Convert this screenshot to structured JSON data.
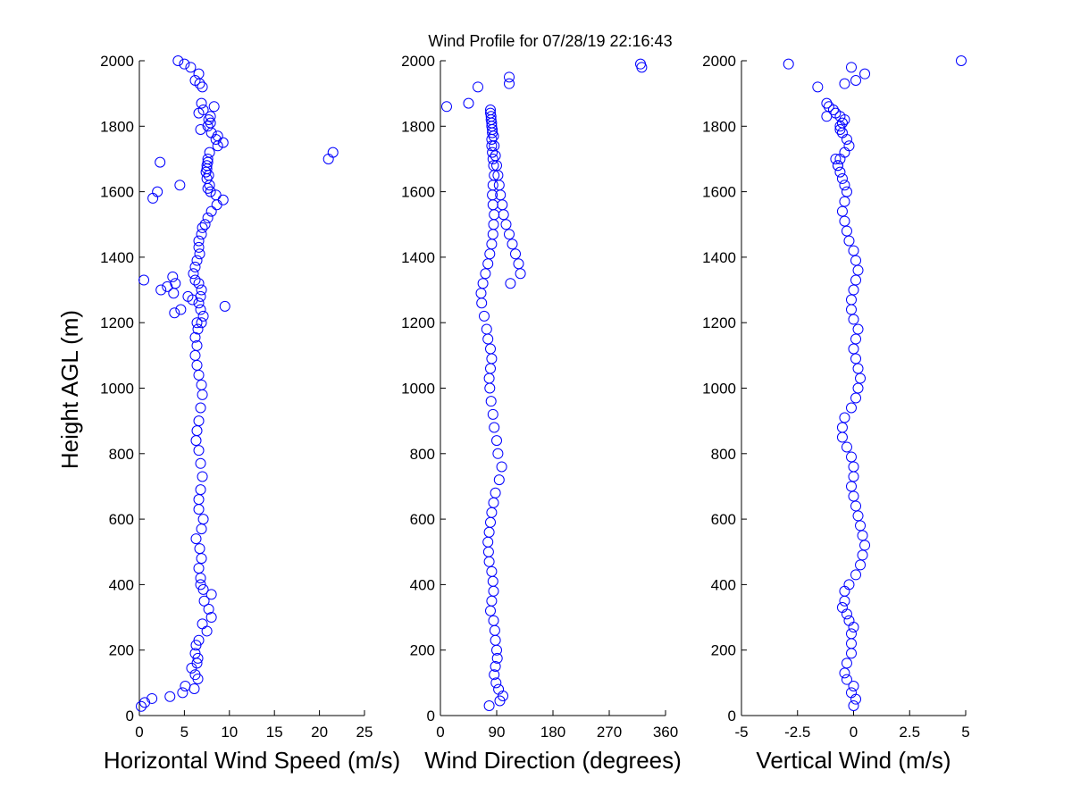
{
  "figure": {
    "title": "Wind Profile for  07/28/19 22:16:43",
    "ylabel": "Height AGL (m)"
  },
  "style": {
    "marker_color": "#0000ff",
    "axis_color": "#000000",
    "background": "#ffffff"
  },
  "chart_data": [
    {
      "type": "scatter",
      "xlabel": "Horizontal Wind Speed (m/s)",
      "ylabel": "Height AGL (m)",
      "xlim": [
        0,
        25
      ],
      "ylim": [
        0,
        2000
      ],
      "xticks": [
        0,
        5,
        10,
        15,
        20,
        25
      ],
      "xtick_labels": [
        "0",
        "5",
        "10",
        "15",
        "20",
        "25"
      ],
      "yticks": [
        0,
        200,
        400,
        600,
        800,
        1000,
        1200,
        1400,
        1600,
        1800,
        2000
      ],
      "ytick_labels": [
        "0",
        "200",
        "400",
        "600",
        "800",
        "1000",
        "1200",
        "1400",
        "1600",
        "1800",
        "2000"
      ],
      "grid": false,
      "x": [
        0.2,
        0.6,
        1.4,
        3.4,
        4.8,
        5.1,
        6.1,
        6.5,
        6.2,
        5.8,
        6.4,
        6.5,
        6.2,
        6.3,
        6.6,
        7.5,
        7.0,
        8.0,
        7.7,
        7.2,
        8.0,
        7.1,
        6.8,
        6.8,
        6.6,
        6.9,
        6.7,
        6.3,
        6.9,
        7.1,
        6.6,
        6.6,
        6.8,
        7.0,
        6.8,
        6.6,
        6.3,
        6.4,
        6.6,
        6.8,
        7.0,
        6.9,
        6.6,
        6.4,
        6.2,
        6.4,
        6.2,
        6.5,
        6.9,
        7.1,
        6.8,
        6.6,
        6.8,
        6.9,
        6.6,
        6.2,
        6.0,
        6.2,
        6.4,
        6.7,
        6.6,
        6.6,
        6.9,
        7.0,
        7.3,
        7.6,
        8.0,
        8.6,
        9.3,
        8.5,
        7.9,
        7.6,
        7.8,
        7.5,
        7.7,
        7.4,
        7.5,
        7.5,
        7.6,
        7.6,
        7.8,
        8.7,
        9.3,
        8.5,
        8.7,
        8.0,
        6.8,
        7.6,
        7.9,
        7.7,
        7.9,
        6.6,
        7.1,
        8.3,
        6.9,
        7.0,
        6.7,
        6.2,
        6.6,
        5.7,
        5.0,
        4.3,
        4.0,
        3.7,
        3.9,
        4.6,
        5.9,
        6.4,
        5.4,
        3.8,
        2.4,
        3.1,
        0.5,
        9.5,
        1.5,
        2.0,
        4.5,
        2.3,
        21.0,
        21.5
      ],
      "y": [
        28,
        40,
        52,
        58,
        70,
        90,
        82,
        112,
        125,
        145,
        160,
        175,
        190,
        215,
        230,
        258,
        280,
        300,
        325,
        350,
        370,
        385,
        400,
        420,
        450,
        480,
        510,
        540,
        570,
        600,
        630,
        660,
        690,
        730,
        770,
        810,
        840,
        870,
        900,
        940,
        980,
        1010,
        1040,
        1070,
        1100,
        1130,
        1155,
        1180,
        1200,
        1220,
        1240,
        1260,
        1280,
        1300,
        1320,
        1330,
        1350,
        1370,
        1390,
        1410,
        1430,
        1450,
        1470,
        1490,
        1500,
        1520,
        1540,
        1560,
        1575,
        1590,
        1600,
        1610,
        1620,
        1640,
        1650,
        1660,
        1670,
        1680,
        1690,
        1700,
        1720,
        1740,
        1750,
        1760,
        1770,
        1780,
        1790,
        1800,
        1810,
        1820,
        1830,
        1840,
        1850,
        1860,
        1870,
        1920,
        1930,
        1940,
        1960,
        1980,
        1990,
        2000,
        1320,
        1340,
        1230,
        1240,
        1270,
        1200,
        1280,
        1290,
        1300,
        1310,
        1330,
        1250,
        1580,
        1600,
        1620,
        1690,
        1700,
        1720
      ]
    },
    {
      "type": "scatter",
      "xlabel": "Wind Direction (degrees)",
      "ylabel": "Height AGL (m)",
      "xlim": [
        0,
        360
      ],
      "ylim": [
        0,
        2000
      ],
      "xticks": [
        0,
        90,
        180,
        270,
        360
      ],
      "xtick_labels": [
        "0",
        "90",
        "180",
        "270",
        "360"
      ],
      "yticks": [
        0,
        200,
        400,
        600,
        800,
        1000,
        1200,
        1400,
        1600,
        1800,
        2000
      ],
      "ytick_labels": [
        "0",
        "200",
        "400",
        "600",
        "800",
        "1000",
        "1200",
        "1400",
        "1600",
        "1800",
        "2000"
      ],
      "grid": false,
      "x": [
        78,
        95,
        100,
        93,
        89,
        86,
        88,
        91,
        90,
        88,
        87,
        85,
        80,
        82,
        85,
        84,
        82,
        78,
        77,
        76,
        78,
        80,
        82,
        85,
        88,
        94,
        98,
        92,
        90,
        86,
        84,
        81,
        79,
        78,
        80,
        82,
        80,
        76,
        74,
        70,
        66,
        65,
        68,
        72,
        76,
        79,
        82,
        84,
        85,
        86,
        84,
        83,
        84,
        86,
        85,
        84,
        83,
        82,
        82,
        83,
        82,
        81,
        80,
        80,
        81,
        82,
        83,
        85,
        86,
        88,
        90,
        92,
        94,
        96,
        99,
        101,
        105,
        110,
        115,
        120,
        125,
        128,
        112,
        60,
        45,
        10,
        110,
        110,
        320,
        322
      ],
      "y": [
        30,
        45,
        60,
        80,
        100,
        125,
        150,
        175,
        200,
        230,
        260,
        290,
        320,
        350,
        380,
        410,
        440,
        470,
        500,
        530,
        560,
        590,
        620,
        650,
        680,
        720,
        760,
        800,
        840,
        880,
        920,
        960,
        1000,
        1030,
        1060,
        1090,
        1120,
        1150,
        1180,
        1220,
        1260,
        1290,
        1320,
        1350,
        1380,
        1410,
        1440,
        1470,
        1500,
        1530,
        1560,
        1590,
        1620,
        1650,
        1680,
        1700,
        1720,
        1740,
        1760,
        1780,
        1800,
        1820,
        1840,
        1850,
        1830,
        1810,
        1790,
        1770,
        1740,
        1710,
        1680,
        1650,
        1620,
        1590,
        1560,
        1530,
        1500,
        1470,
        1440,
        1410,
        1380,
        1350,
        1320,
        1920,
        1870,
        1860,
        1930,
        1950,
        1990,
        1980
      ]
    },
    {
      "type": "scatter",
      "xlabel": "Vertical Wind (m/s)",
      "ylabel": "Height AGL (m)",
      "xlim": [
        -5,
        5
      ],
      "ylim": [
        0,
        2000
      ],
      "xticks": [
        -5,
        -2.5,
        0,
        2.5,
        5
      ],
      "xtick_labels": [
        "-5",
        "-2.5",
        "0",
        "2.5",
        "5"
      ],
      "yticks": [
        0,
        200,
        400,
        600,
        800,
        1000,
        1200,
        1400,
        1600,
        1800,
        2000
      ],
      "ytick_labels": [
        "0",
        "200",
        "400",
        "600",
        "800",
        "1000",
        "1200",
        "1400",
        "1600",
        "1800",
        "2000"
      ],
      "grid": false,
      "x": [
        0.0,
        0.1,
        -0.1,
        0.0,
        -0.3,
        -0.4,
        -0.3,
        -0.1,
        -0.1,
        -0.1,
        0.0,
        -0.2,
        -0.3,
        -0.5,
        -0.4,
        -0.4,
        -0.2,
        0.1,
        0.3,
        0.4,
        0.5,
        0.4,
        0.3,
        0.2,
        0.1,
        0.0,
        -0.1,
        0.0,
        0.0,
        -0.1,
        -0.3,
        -0.5,
        -0.5,
        -0.4,
        -0.1,
        0.1,
        0.2,
        0.3,
        0.2,
        0.1,
        0.0,
        0.1,
        0.2,
        0.0,
        -0.1,
        -0.1,
        0.0,
        0.1,
        0.2,
        0.1,
        0.0,
        -0.2,
        -0.3,
        -0.4,
        -0.5,
        -0.4,
        -0.3,
        -0.4,
        -0.5,
        -0.6,
        -0.7,
        -0.6,
        -0.4,
        -0.2,
        -0.3,
        -0.5,
        -0.6,
        -0.6,
        -0.5,
        -0.4,
        -0.6,
        -0.8,
        -0.9,
        -1.1,
        -1.2,
        -1.2,
        -0.8,
        -0.7,
        -1.6,
        -0.4,
        0.1,
        0.5,
        -0.1,
        -2.9,
        4.8
      ],
      "y": [
        30,
        50,
        70,
        90,
        110,
        130,
        160,
        190,
        220,
        250,
        270,
        290,
        310,
        330,
        350,
        380,
        400,
        430,
        460,
        490,
        520,
        550,
        580,
        610,
        640,
        670,
        700,
        730,
        760,
        790,
        820,
        850,
        880,
        910,
        940,
        970,
        1000,
        1030,
        1060,
        1090,
        1120,
        1150,
        1180,
        1210,
        1240,
        1270,
        1300,
        1330,
        1360,
        1390,
        1420,
        1450,
        1480,
        1510,
        1540,
        1570,
        1600,
        1620,
        1640,
        1660,
        1680,
        1700,
        1720,
        1740,
        1760,
        1780,
        1790,
        1800,
        1810,
        1820,
        1830,
        1840,
        1850,
        1860,
        1870,
        1830,
        1700,
        1680,
        1920,
        1930,
        1940,
        1960,
        1980,
        1990,
        2000
      ]
    }
  ]
}
